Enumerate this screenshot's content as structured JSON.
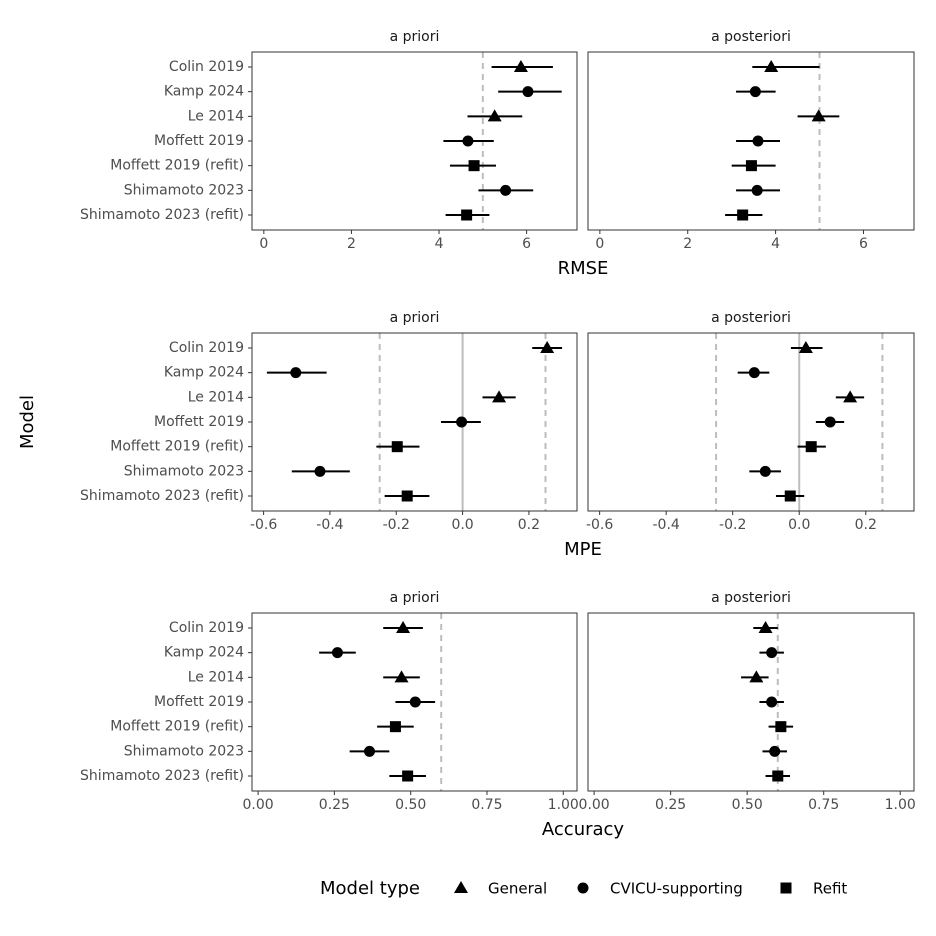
{
  "y_label": "Model",
  "legend": {
    "title": "Model type",
    "position": "bottom",
    "items": [
      {
        "name": "General",
        "shape": "triangle"
      },
      {
        "name": "CVICU-supporting",
        "shape": "circle"
      },
      {
        "name": "Refit",
        "shape": "square"
      }
    ]
  },
  "chart_data": [
    {
      "type": "forest",
      "x_label": "RMSE",
      "categories": [
        "Colin 2019",
        "Kamp 2024",
        "Le 2014",
        "Moffett 2019",
        "Moffett 2019 (refit)",
        "Shimamoto 2023",
        "Shimamoto 2023 (refit)"
      ],
      "model_types": [
        "General",
        "CVICU-supporting",
        "General",
        "CVICU-supporting",
        "Refit",
        "CVICU-supporting",
        "Refit"
      ],
      "xlim": [
        -0.27,
        7.15
      ],
      "xticks": [
        0,
        2,
        4,
        6
      ],
      "ref_lines": [
        {
          "value": 5,
          "style": "dashed"
        }
      ],
      "panels": [
        {
          "title": "a priori",
          "values": [
            5.87,
            6.03,
            5.27,
            4.66,
            4.8,
            5.52,
            4.63
          ],
          "lower": [
            5.2,
            5.35,
            4.65,
            4.1,
            4.25,
            4.9,
            4.15
          ],
          "upper": [
            6.6,
            6.8,
            5.9,
            5.25,
            5.3,
            6.15,
            5.15
          ]
        },
        {
          "title": "a posteriori",
          "values": [
            3.9,
            3.54,
            4.98,
            3.6,
            3.45,
            3.58,
            3.25
          ],
          "lower": [
            3.47,
            3.1,
            4.5,
            3.1,
            3.0,
            3.1,
            2.85
          ],
          "upper": [
            5.0,
            4.0,
            5.45,
            4.1,
            4.0,
            4.1,
            3.7
          ]
        }
      ]
    },
    {
      "type": "forest",
      "x_label": "MPE",
      "categories": [
        "Colin 2019",
        "Kamp 2024",
        "Le 2014",
        "Moffett 2019",
        "Moffett 2019 (refit)",
        "Shimamoto 2023",
        "Shimamoto 2023 (refit)"
      ],
      "model_types": [
        "General",
        "CVICU-supporting",
        "General",
        "CVICU-supporting",
        "Refit",
        "CVICU-supporting",
        "Refit"
      ],
      "xlim": [
        -0.635,
        0.345
      ],
      "xticks": [
        -0.6,
        -0.4,
        -0.2,
        {
          "value": 0,
          "label": "0.0"
        },
        0.2
      ],
      "ref_lines": [
        {
          "value": 0,
          "style": "solid"
        },
        {
          "value": -0.25,
          "style": "dashed"
        },
        {
          "value": 0.25,
          "style": "dashed"
        }
      ],
      "panels": [
        {
          "title": "a priori",
          "values": [
            0.255,
            -0.503,
            0.11,
            -0.003,
            -0.197,
            -0.43,
            -0.167
          ],
          "lower": [
            0.21,
            -0.59,
            0.06,
            -0.065,
            -0.26,
            -0.515,
            -0.235
          ],
          "upper": [
            0.3,
            -0.41,
            0.16,
            0.055,
            -0.13,
            -0.34,
            -0.1
          ]
        },
        {
          "title": "a posteriori",
          "values": [
            0.02,
            -0.135,
            0.153,
            0.093,
            0.036,
            -0.102,
            -0.027
          ],
          "lower": [
            -0.025,
            -0.185,
            0.11,
            0.05,
            -0.005,
            -0.15,
            -0.07
          ],
          "upper": [
            0.07,
            -0.09,
            0.195,
            0.135,
            0.08,
            -0.055,
            0.015
          ]
        }
      ]
    },
    {
      "type": "forest",
      "x_label": "Accuracy",
      "categories": [
        "Colin 2019",
        "Kamp 2024",
        "Le 2014",
        "Moffett 2019",
        "Moffett 2019 (refit)",
        "Shimamoto 2023",
        "Shimamoto 2023 (refit)"
      ],
      "model_types": [
        "General",
        "CVICU-supporting",
        "General",
        "CVICU-supporting",
        "Refit",
        "CVICU-supporting",
        "Refit"
      ],
      "xlim": [
        -0.02,
        1.045
      ],
      "xticks": [
        {
          "value": 0,
          "label": "0.00"
        },
        0.25,
        {
          "value": 0.5,
          "label": "0.50"
        },
        0.75,
        {
          "value": 1,
          "label": "1.00"
        }
      ],
      "ref_lines": [
        {
          "value": 0.6,
          "style": "dashed"
        }
      ],
      "panels": [
        {
          "title": "a priori",
          "values": [
            0.475,
            0.26,
            0.47,
            0.515,
            0.45,
            0.365,
            0.49
          ],
          "lower": [
            0.41,
            0.2,
            0.41,
            0.45,
            0.39,
            0.3,
            0.43
          ],
          "upper": [
            0.54,
            0.32,
            0.53,
            0.58,
            0.51,
            0.43,
            0.55
          ]
        },
        {
          "title": "a posteriori",
          "values": [
            0.56,
            0.58,
            0.53,
            0.58,
            0.61,
            0.59,
            0.6
          ],
          "lower": [
            0.52,
            0.54,
            0.48,
            0.54,
            0.57,
            0.55,
            0.56
          ],
          "upper": [
            0.6,
            0.62,
            0.57,
            0.62,
            0.65,
            0.63,
            0.64
          ]
        }
      ]
    }
  ]
}
